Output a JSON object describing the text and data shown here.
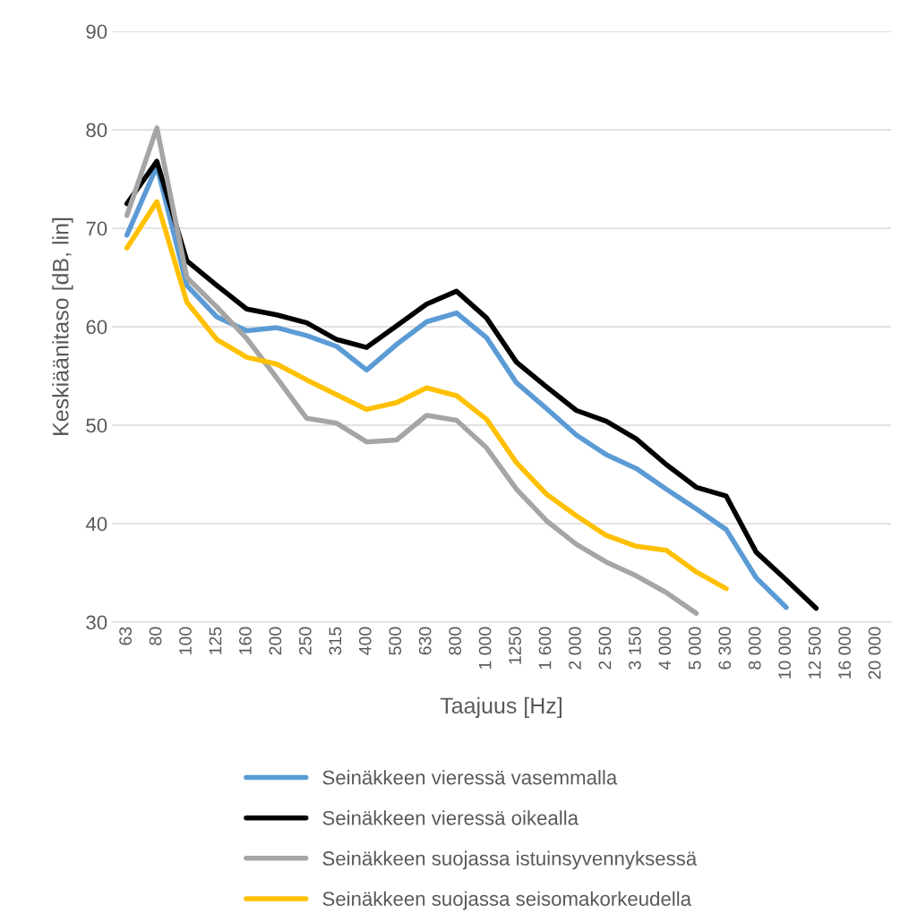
{
  "chart_data": {
    "type": "line",
    "xlabel": "Taajuus [Hz]",
    "ylabel": "Keskiäänitaso [dB, lin]",
    "categories": [
      "63",
      "80",
      "100",
      "125",
      "160",
      "200",
      "250",
      "315",
      "400",
      "500",
      "630",
      "800",
      "1 000",
      "1250",
      "1 600",
      "2 000",
      "2 500",
      "3 150",
      "4 000",
      "5 000",
      "6 300",
      "8 000",
      "10 000",
      "12 500",
      "16 000",
      "20 000"
    ],
    "series": [
      {
        "name": "Seinäkkeen vieressä vasemmalla",
        "color": "#5b9bd5",
        "values": [
          69.3,
          76.3,
          64.2,
          61.0,
          59.6,
          59.9,
          59.1,
          58.0,
          55.6,
          58.2,
          60.5,
          61.4,
          58.9,
          54.3,
          51.7,
          49.0,
          47.0,
          45.6,
          43.5,
          41.5,
          39.4,
          34.5,
          31.5,
          null,
          null,
          null
        ]
      },
      {
        "name": "Seinäkkeen vieressä oikealla",
        "color": "#000000",
        "values": [
          72.5,
          76.8,
          66.7,
          64.2,
          61.8,
          61.2,
          60.4,
          58.7,
          57.9,
          60.1,
          62.3,
          63.6,
          60.9,
          56.4,
          53.9,
          51.5,
          50.4,
          48.6,
          46.0,
          43.7,
          42.8,
          37.1,
          34.3,
          31.4,
          null,
          null
        ]
      },
      {
        "name": "Seinäkkeen suojassa istuinsyvennyksessä",
        "color": "#a5a5a5",
        "values": [
          71.3,
          80.2,
          65.0,
          62.0,
          58.8,
          54.8,
          50.7,
          50.2,
          48.3,
          48.5,
          51.0,
          50.5,
          47.7,
          43.5,
          40.3,
          37.9,
          36.1,
          34.7,
          33.0,
          30.9,
          null,
          null,
          null,
          null,
          null,
          null
        ]
      },
      {
        "name": "Seinäkkeen suojassa seisomakorkeudella",
        "color": "#ffc000",
        "values": [
          68.0,
          72.7,
          62.5,
          58.7,
          56.9,
          56.2,
          54.6,
          53.1,
          51.6,
          52.3,
          53.8,
          53.0,
          50.6,
          46.2,
          43.0,
          40.8,
          38.8,
          37.7,
          37.3,
          35.1,
          33.4,
          null,
          null,
          null,
          null,
          null
        ]
      }
    ],
    "ylim": [
      30,
      90
    ],
    "yticks": [
      30,
      40,
      50,
      60,
      70,
      80,
      90
    ],
    "grid": "y",
    "legend": "bottom",
    "marker": "none",
    "line_style": "solid"
  }
}
